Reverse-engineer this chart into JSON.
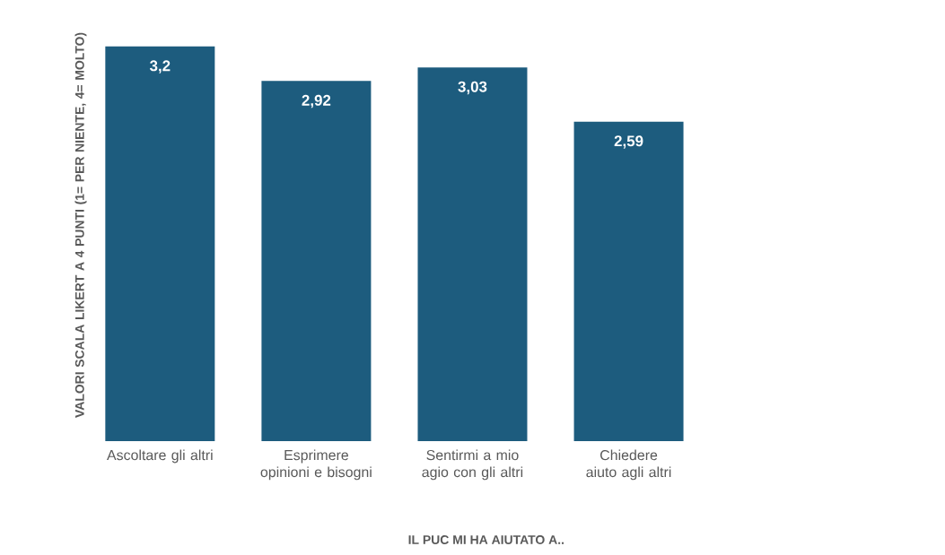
{
  "chart_data": {
    "type": "bar",
    "xlabel": "IL PUC MI HA AIUTATO A..",
    "ylabel": "VALORI SCALA LIKERT A 4 PUNTI (1= PER NIENTE, 4= MOLTO)",
    "categories": [
      "Ascoltare gli altri",
      "Esprimere opinioni e bisogni",
      "Sentirmi a mio agio con gli altri",
      "Chiedere aiuto agli altri"
    ],
    "values": [
      3.2,
      2.92,
      3.03,
      2.59
    ],
    "value_labels": [
      "3,2",
      "2,92",
      "3,03",
      "2,59"
    ],
    "color": "#1d5c7e"
  }
}
